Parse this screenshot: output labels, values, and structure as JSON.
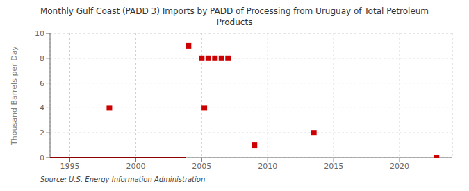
{
  "chart_data": {
    "type": "scatter",
    "title": "Monthly Gulf Coast (PADD 3) Imports by PADD of Processing from Uruguay of Total Petroleum\nProducts",
    "ylabel": "Thousand Barrels per Day",
    "source": "Source: U.S. Energy Information Administration",
    "xlim": [
      1993.5,
      2024
    ],
    "ylim": [
      0,
      10
    ],
    "xticks": [
      1995,
      2000,
      2005,
      2010,
      2015,
      2020
    ],
    "yticks": [
      0,
      2,
      4,
      6,
      8,
      10
    ],
    "grid": true,
    "series": [
      {
        "type": "line",
        "color": "#8b0000",
        "x": [
          1993.5,
          2003.8
        ],
        "values": [
          0,
          0
        ]
      },
      {
        "type": "scatter",
        "color": "#cc0000",
        "marker": "square",
        "x": [
          1998.0,
          2004.0,
          2005.0,
          2005.5,
          2006.0,
          2006.5,
          2007.0,
          2005.2,
          2009.0,
          2013.5,
          2022.8
        ],
        "values": [
          4,
          9,
          8,
          8,
          8,
          8,
          8,
          4,
          1,
          2,
          0
        ]
      }
    ]
  }
}
